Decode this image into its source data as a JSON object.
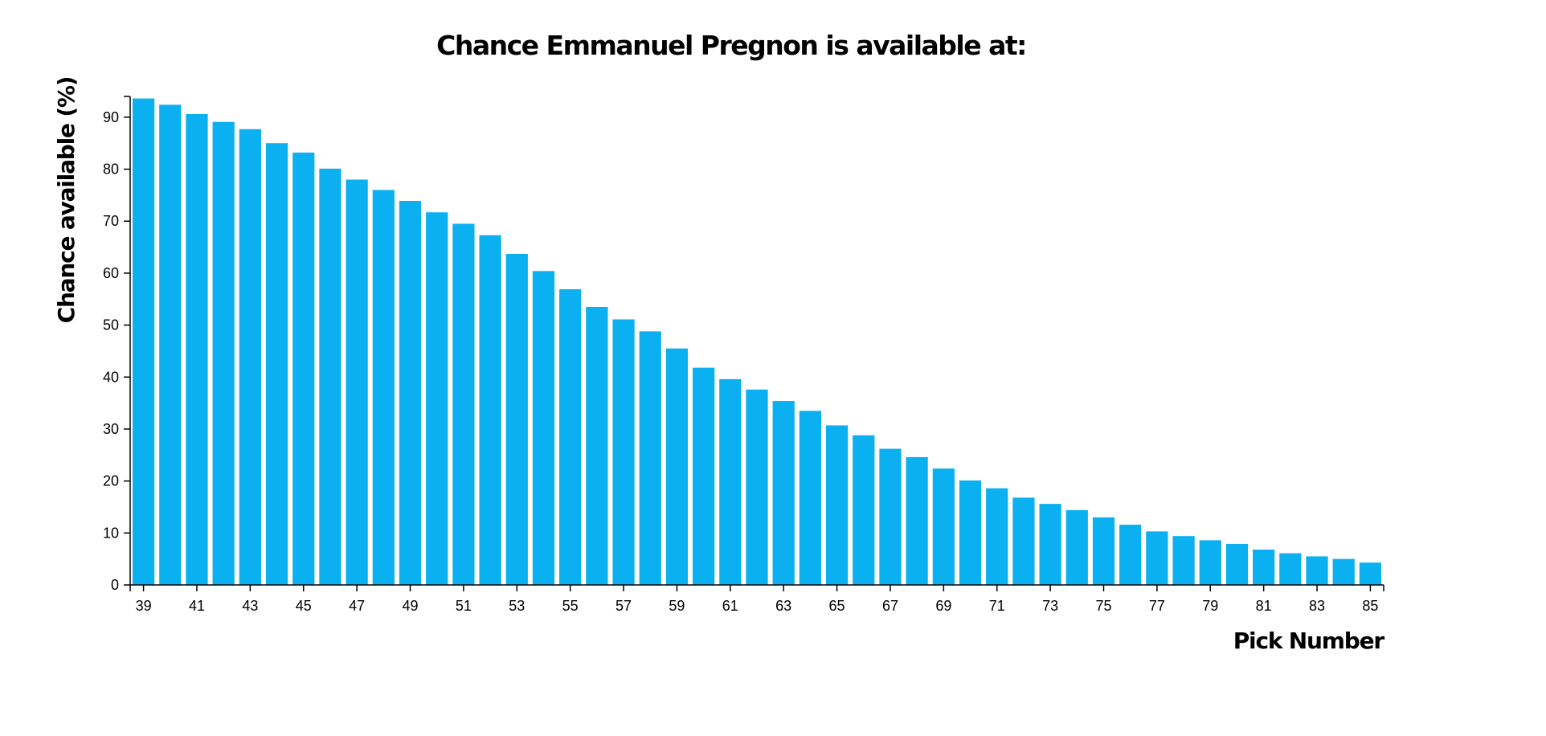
{
  "chart_data": {
    "type": "bar",
    "title": "Chance Emmanuel Pregnon is available at:",
    "xlabel": "Pick Number",
    "ylabel": "Chance available (%)",
    "ylim": [
      0,
      94
    ],
    "yticks": [
      0,
      10,
      20,
      30,
      40,
      50,
      60,
      70,
      80,
      90
    ],
    "xtick_labels": [
      "39",
      "41",
      "43",
      "45",
      "47",
      "49",
      "51",
      "53",
      "55",
      "57",
      "59",
      "61",
      "63",
      "65",
      "67",
      "69",
      "71",
      "73",
      "75",
      "77",
      "79",
      "81",
      "83",
      "85"
    ],
    "categories": [
      "39",
      "40",
      "41",
      "42",
      "43",
      "44",
      "45",
      "46",
      "47",
      "48",
      "49",
      "50",
      "51",
      "52",
      "53",
      "54",
      "55",
      "56",
      "57",
      "58",
      "59",
      "60",
      "61",
      "62",
      "63",
      "64",
      "65",
      "66",
      "67",
      "68",
      "69",
      "70",
      "71",
      "72",
      "73",
      "74",
      "75",
      "76",
      "77",
      "78",
      "79",
      "80",
      "81",
      "82",
      "83",
      "84",
      "85"
    ],
    "values": [
      93.6,
      92.4,
      90.6,
      89.1,
      87.7,
      85.0,
      83.2,
      80.1,
      78.0,
      76.0,
      73.9,
      71.7,
      69.5,
      67.3,
      63.7,
      60.4,
      56.9,
      53.5,
      51.1,
      48.8,
      45.5,
      41.8,
      39.6,
      37.6,
      35.4,
      33.5,
      30.7,
      28.8,
      26.2,
      24.6,
      22.4,
      20.1,
      18.6,
      16.8,
      15.6,
      14.4,
      13.0,
      11.6,
      10.3,
      9.4,
      8.6,
      7.9,
      6.8,
      6.1,
      5.5,
      5.0,
      4.3
    ],
    "bar_color": "#0bb0f0",
    "grid": false,
    "legend": "none"
  }
}
